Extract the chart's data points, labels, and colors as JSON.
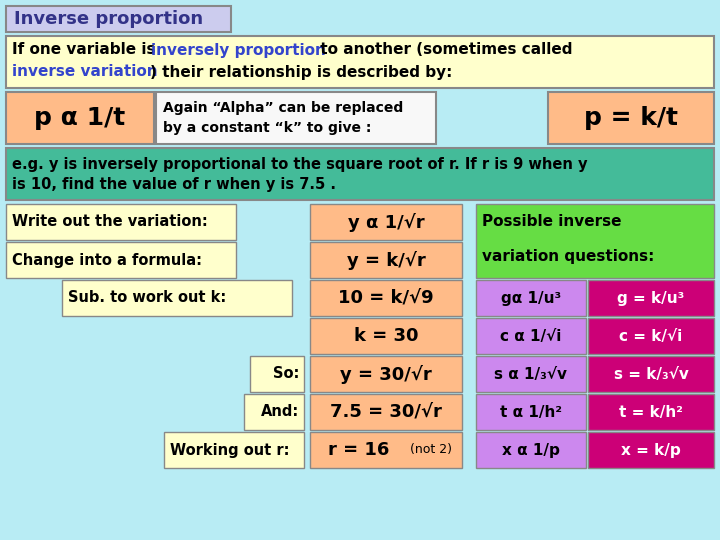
{
  "bg_color": "#b8ecf4",
  "title_box_color": "#ccccee",
  "title_text_color": "#333388",
  "yellow_bg": "#ffffcc",
  "orange_bg": "#ffbb88",
  "green_bg": "#66dd44",
  "teal_bg": "#44bb99",
  "purple_bg": "#cc88ee",
  "magenta_bg": "#cc0077",
  "blue_text": "#3344cc",
  "black": "#000000",
  "white": "#ffffff",
  "title": "Inverse proportion",
  "intro_line1_black1": "If one variable is ",
  "intro_line1_blue": "inversely proportion",
  "intro_line1_black2": " to another (sometimes called",
  "intro_line2_blue": "inverse variation",
  "intro_line2_black": ") their relationship is described by:",
  "p_alpha": "p α 1/t",
  "alpha_explain1": "Again “Alpha” can be replaced",
  "alpha_explain2": "by a constant “k” to give :",
  "p_formula": "p = k/t",
  "eg_line1": "e.g. y is inversely proportional to the square root of r. If r is 9 when y",
  "eg_line2": "is 10, find the value of r when y is 7.5 .",
  "rows": [
    {
      "label": "Write out the variation:",
      "label_indent": 0,
      "formula": "y α 1/√r"
    },
    {
      "label": "Change into a formula:",
      "label_indent": 0,
      "formula": "y = k/√r"
    },
    {
      "label": "Sub. to work out k:",
      "label_indent": 50,
      "formula": "10 = k/√9"
    },
    {
      "label": null,
      "label_indent": 0,
      "formula": "k = 30"
    },
    {
      "label": "So:",
      "label_indent": 220,
      "formula": "y = 30/√r"
    },
    {
      "label": "And:",
      "label_indent": 200,
      "formula": "7.5 = 30/√r"
    },
    {
      "label": "Working out r:",
      "label_indent": 110,
      "formula": "r = 16",
      "extra": "(not 2)"
    }
  ],
  "right_header": [
    "Possible inverse",
    "variation questions:"
  ],
  "right_rows": [
    {
      "left": "gα 1/u³",
      "right": "g = k/u³"
    },
    {
      "left": "c α 1/√i",
      "right": "c = k/√i"
    },
    {
      "left": "s α 1/₃√v",
      "right": "s = k/₃√v"
    },
    {
      "left": "t α 1/h²",
      "right": "t = k/h²"
    },
    {
      "left": "x α 1/p",
      "right": "x = k/p"
    }
  ]
}
